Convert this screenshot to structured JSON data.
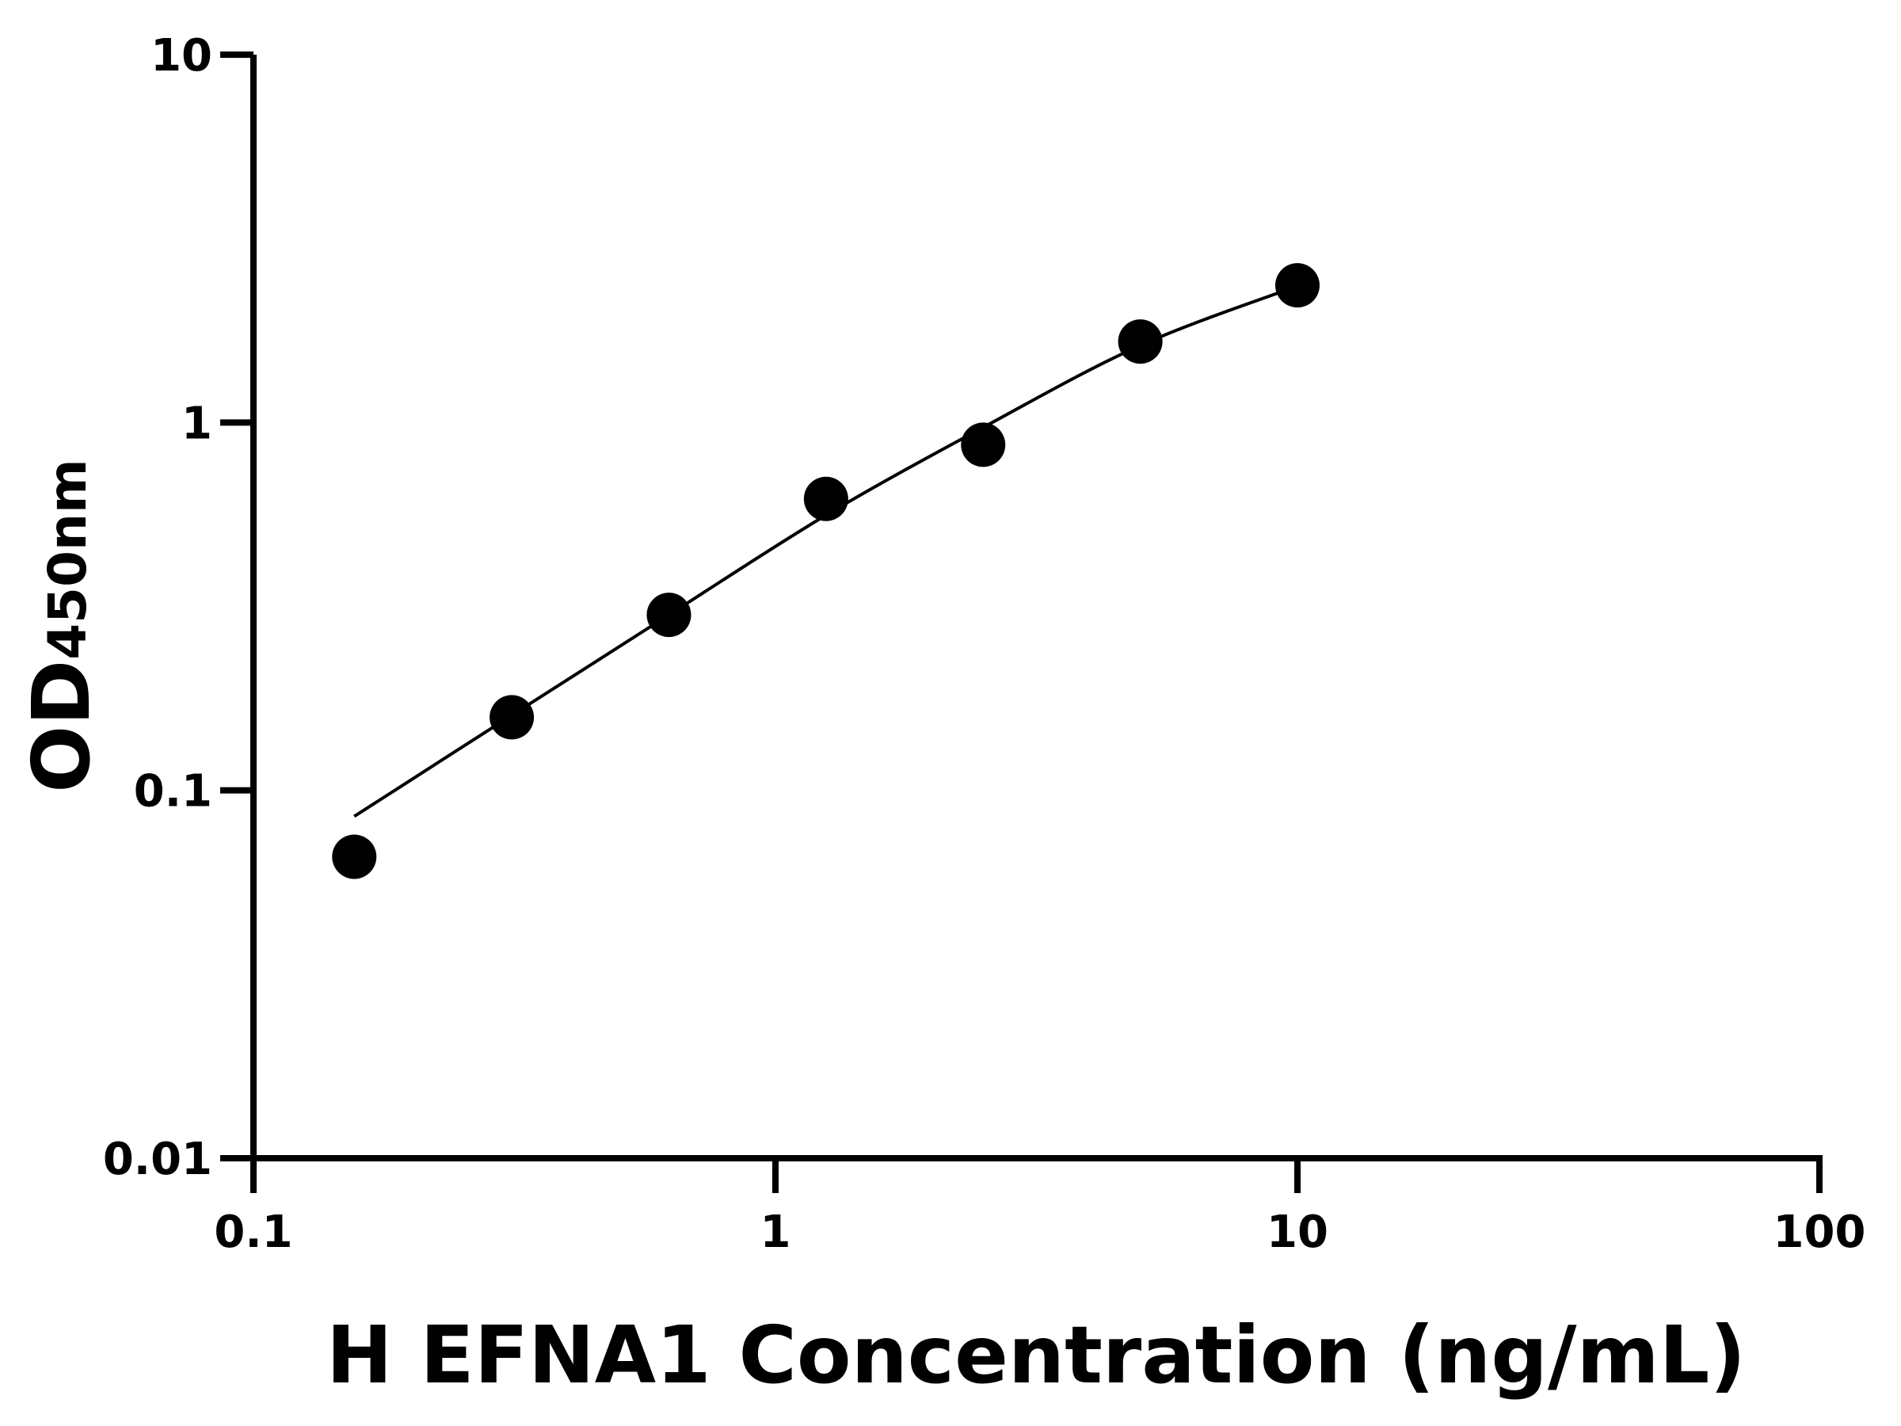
{
  "chart_data": {
    "type": "scatter",
    "title": "",
    "xlabel": "H EFNA1 Concentration (ng/mL)",
    "ylabel_main": "OD",
    "ylabel_sub": "450nm",
    "xscale": "log",
    "yscale": "log",
    "xlim": [
      0.1,
      100
    ],
    "ylim": [
      0.01,
      10
    ],
    "xticks": [
      0.1,
      1,
      10,
      100
    ],
    "xtick_labels": [
      "0.1",
      "1",
      "10",
      "100"
    ],
    "yticks": [
      0.01,
      0.1,
      1,
      10
    ],
    "ytick_labels": [
      "0.01",
      "0.1",
      "1",
      "10"
    ],
    "grid": false,
    "legend": "none",
    "points": {
      "x": [
        0.156,
        0.3125,
        0.625,
        1.25,
        2.5,
        5,
        10
      ],
      "y": [
        0.066,
        0.158,
        0.3,
        0.62,
        0.87,
        1.66,
        2.36
      ]
    },
    "fit_curve": {
      "x": [
        0.156,
        0.3125,
        0.625,
        1.25,
        2.5,
        5,
        10
      ],
      "y": [
        0.085,
        0.16,
        0.3,
        0.56,
        0.97,
        1.62,
        2.35
      ]
    },
    "colors": {
      "points": "#000000",
      "curve": "#000000",
      "axes": "#000000"
    }
  }
}
